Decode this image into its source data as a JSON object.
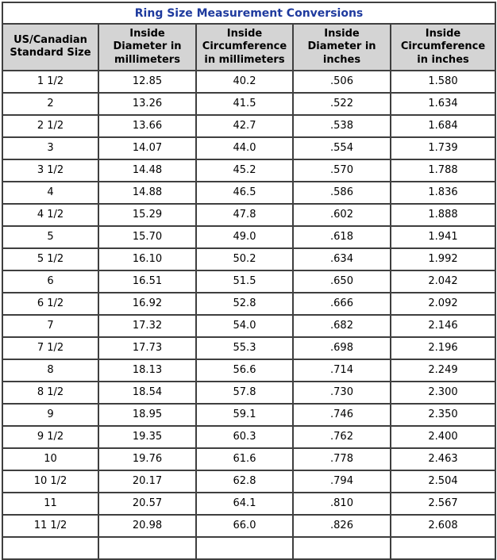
{
  "title": "Ring Size Measurement Conversions",
  "colors": {
    "title_text": "#1e3a9e",
    "header_bg": "#d4d4d4",
    "border": "#3f3f3f",
    "body_text": "#000000",
    "page_bg": "#ffffff"
  },
  "table": {
    "headers": [
      "US/Canadian\nStandard Size",
      "Inside\nDiameter in\nmillimeters",
      "Inside\nCircumference\nin millimeters",
      "Inside\nDiameter in\ninches",
      "Inside\nCircumference\nin inches"
    ]
  },
  "chart_data": {
    "type": "table",
    "title": "Ring Size Measurement Conversions",
    "columns": [
      "US/Canadian Standard Size",
      "Inside Diameter in millimeters",
      "Inside Circumference in millimeters",
      "Inside Diameter in inches",
      "Inside Circumference in inches"
    ],
    "rows": [
      [
        "1 1/2",
        "12.85",
        "40.2",
        ".506",
        "1.580"
      ],
      [
        "2",
        "13.26",
        "41.5",
        ".522",
        "1.634"
      ],
      [
        "2 1/2",
        "13.66",
        "42.7",
        ".538",
        "1.684"
      ],
      [
        "3",
        "14.07",
        "44.0",
        ".554",
        "1.739"
      ],
      [
        "3 1/2",
        "14.48",
        "45.2",
        ".570",
        "1.788"
      ],
      [
        "4",
        "14.88",
        "46.5",
        ".586",
        "1.836"
      ],
      [
        "4 1/2",
        "15.29",
        "47.8",
        ".602",
        "1.888"
      ],
      [
        "5",
        "15.70",
        "49.0",
        ".618",
        "1.941"
      ],
      [
        "5 1/2",
        "16.10",
        "50.2",
        ".634",
        "1.992"
      ],
      [
        "6",
        "16.51",
        "51.5",
        ".650",
        "2.042"
      ],
      [
        "6 1/2",
        "16.92",
        "52.8",
        ".666",
        "2.092"
      ],
      [
        "7",
        "17.32",
        "54.0",
        ".682",
        "2.146"
      ],
      [
        "7 1/2",
        "17.73",
        "55.3",
        ".698",
        "2.196"
      ],
      [
        "8",
        "18.13",
        "56.6",
        ".714",
        "2.249"
      ],
      [
        "8 1/2",
        "18.54",
        "57.8",
        ".730",
        "2.300"
      ],
      [
        "9",
        "18.95",
        "59.1",
        ".746",
        "2.350"
      ],
      [
        "9 1/2",
        "19.35",
        "60.3",
        ".762",
        "2.400"
      ],
      [
        "10",
        "19.76",
        "61.6",
        ".778",
        "2.463"
      ],
      [
        "10 1/2",
        "20.17",
        "62.8",
        ".794",
        "2.504"
      ],
      [
        "11",
        "20.57",
        "64.1",
        ".810",
        "2.567"
      ],
      [
        "11 1/2",
        "20.98",
        "66.0",
        ".826",
        "2.608"
      ]
    ]
  }
}
